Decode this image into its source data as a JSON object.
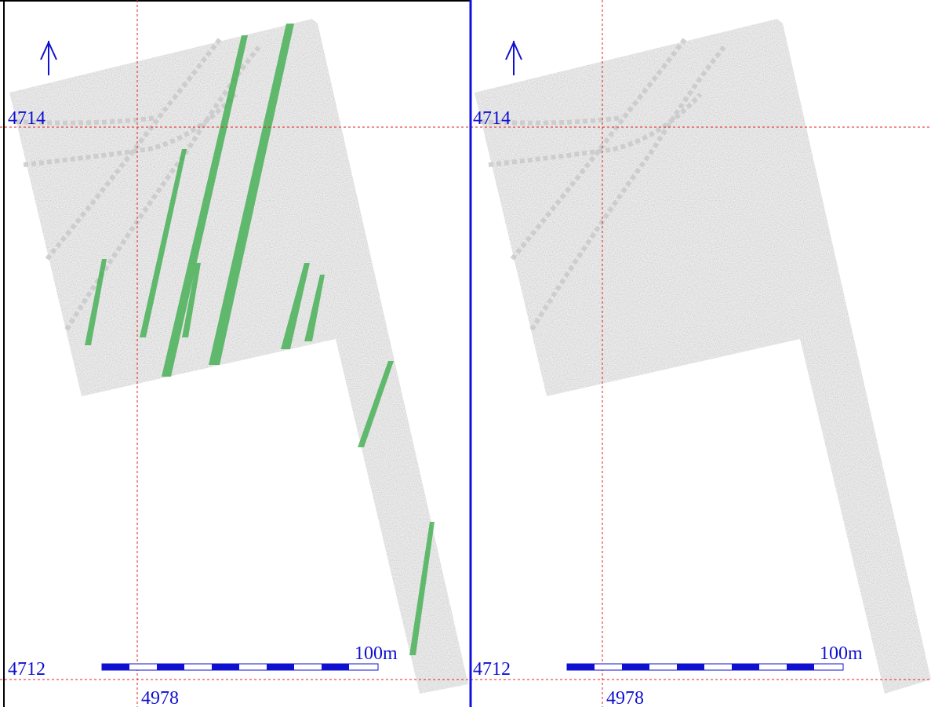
{
  "panels": [
    {
      "labels": {
        "north_grid": "4714",
        "south_grid": "4712",
        "east_grid": "4978",
        "scale": "100m"
      }
    },
    {
      "labels": {
        "north_grid": "4714",
        "south_grid": "4712",
        "east_grid": "4978",
        "scale": "100m"
      }
    }
  ]
}
